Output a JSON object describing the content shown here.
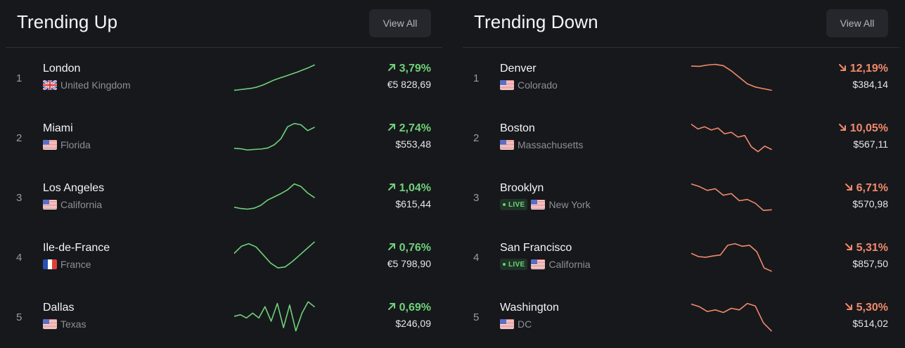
{
  "trending_up": {
    "title": "Trending Up",
    "view_all_label": "View All",
    "color": "#6fd17a",
    "items": [
      {
        "rank": "1",
        "city": "London",
        "region": "United Kingdom",
        "flag": "gb",
        "live": false,
        "change": "3,79%",
        "price": "€5 828,69"
      },
      {
        "rank": "2",
        "city": "Miami",
        "region": "Florida",
        "flag": "us",
        "live": false,
        "change": "2,74%",
        "price": "$553,48"
      },
      {
        "rank": "3",
        "city": "Los Angeles",
        "region": "California",
        "flag": "us",
        "live": false,
        "change": "1,04%",
        "price": "$615,44"
      },
      {
        "rank": "4",
        "city": "Ile-de-France",
        "region": "France",
        "flag": "fr",
        "live": false,
        "change": "0,76%",
        "price": "€5 798,90"
      },
      {
        "rank": "5",
        "city": "Dallas",
        "region": "Texas",
        "flag": "us",
        "live": false,
        "change": "0,69%",
        "price": "$246,09"
      }
    ]
  },
  "trending_down": {
    "title": "Trending Down",
    "view_all_label": "View All",
    "color": "#f08a6a",
    "items": [
      {
        "rank": "1",
        "city": "Denver",
        "region": "Colorado",
        "flag": "us",
        "live": false,
        "change": "12,19%",
        "price": "$384,14"
      },
      {
        "rank": "2",
        "city": "Boston",
        "region": "Massachusetts",
        "flag": "us",
        "live": false,
        "change": "10,05%",
        "price": "$567,11"
      },
      {
        "rank": "3",
        "city": "Brooklyn",
        "region": "New York",
        "flag": "us",
        "live": true,
        "change": "6,71%",
        "price": "$570,98"
      },
      {
        "rank": "4",
        "city": "San Francisco",
        "region": "California",
        "flag": "us",
        "live": true,
        "change": "5,31%",
        "price": "$857,50"
      },
      {
        "rank": "5",
        "city": "Washington",
        "region": "DC",
        "flag": "us",
        "live": false,
        "change": "5,30%",
        "price": "$514,02"
      }
    ]
  },
  "live_label": "LIVE"
}
